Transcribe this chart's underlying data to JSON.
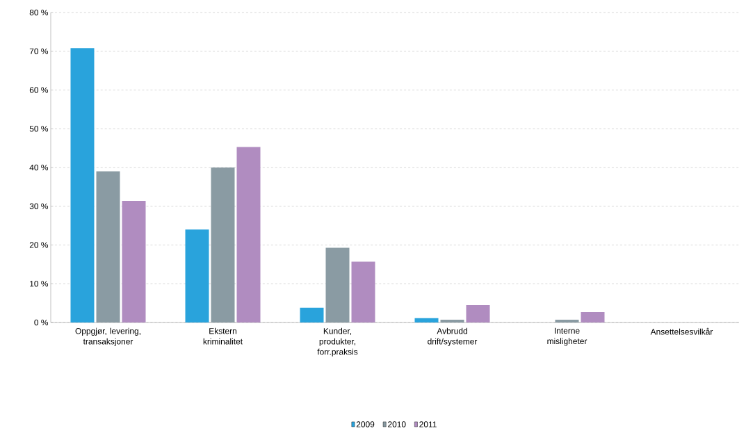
{
  "chart_data": {
    "type": "bar",
    "categories": [
      "Oppgjør, levering, transaksjoner",
      "Ekstern kriminalitet",
      "Kunder, produkter, forr.praksis",
      "Avbrudd drift/systemer",
      "Interne misligheter",
      "Ansettelsesvilkår"
    ],
    "series": [
      {
        "name": "2009",
        "color": "#29a3dc",
        "values": [
          70.8,
          24,
          3.8,
          1.1,
          null,
          null
        ]
      },
      {
        "name": "2010",
        "color": "#8a9ba3",
        "values": [
          39,
          40,
          19.3,
          0.7,
          0.7,
          null
        ]
      },
      {
        "name": "2011",
        "color": "#b08cc0",
        "values": [
          31.4,
          45.3,
          15.7,
          4.5,
          2.7,
          null
        ]
      }
    ],
    "ylim": [
      0,
      80
    ],
    "yticks": [
      {
        "value": 0,
        "label": "0 %"
      },
      {
        "value": 10,
        "label": "10 %"
      },
      {
        "value": 20,
        "label": "20 %"
      },
      {
        "value": 30,
        "label": "30 %"
      },
      {
        "value": 40,
        "label": "40 %"
      },
      {
        "value": 50,
        "label": "50 %"
      },
      {
        "value": 60,
        "label": "60 %"
      },
      {
        "value": 70,
        "label": "70 %"
      },
      {
        "value": 80,
        "label": "80 %"
      }
    ],
    "grid": "y",
    "legend": "bottom"
  }
}
